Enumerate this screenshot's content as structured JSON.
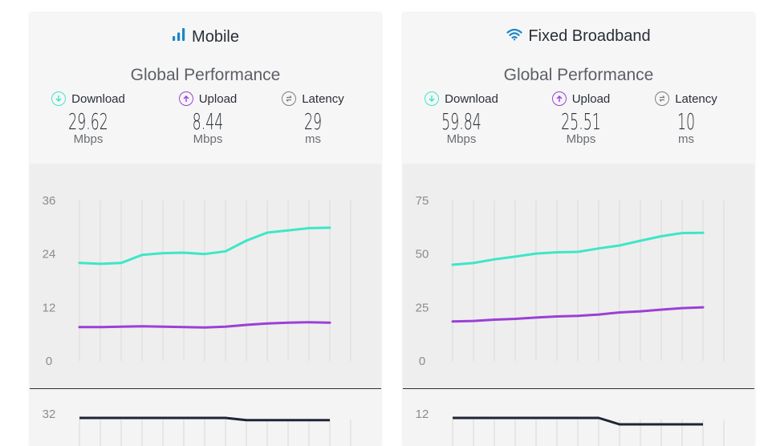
{
  "colors": {
    "download": "#3ee6c7",
    "upload": "#9b40d6",
    "latency": "#7a7c82",
    "latency_line": "#1f2535",
    "grid": "#d9d9d9",
    "mobile_icon": "#1a86c8",
    "wifi_icon": "#1a86c8"
  },
  "mobile": {
    "title": "Mobile",
    "icon": "signal-bars-icon",
    "perf_title": "Global Performance",
    "download": {
      "label": "Download",
      "value": "29.62",
      "unit": "Mbps"
    },
    "upload": {
      "label": "Upload",
      "value": "8.44",
      "unit": "Mbps"
    },
    "latency": {
      "label": "Latency",
      "value": "29",
      "unit": "ms"
    }
  },
  "broadband": {
    "title": "Fixed Broadband",
    "icon": "wifi-icon",
    "perf_title": "Global Performance",
    "download": {
      "label": "Download",
      "value": "59.84",
      "unit": "Mbps"
    },
    "upload": {
      "label": "Upload",
      "value": "25.51",
      "unit": "Mbps"
    },
    "latency": {
      "label": "Latency",
      "value": "10",
      "unit": "ms"
    }
  },
  "chart_data": [
    {
      "type": "line",
      "ylim": [
        0,
        36
      ],
      "yticks": [
        "36",
        "24",
        "12",
        "0"
      ],
      "series": [
        {
          "values": [
            22.0,
            21.8,
            22.0,
            23.8,
            24.2,
            24.3,
            24.0,
            24.6,
            27.0,
            28.8,
            29.3,
            29.8,
            29.9
          ]
        },
        {
          "values": [
            7.6,
            7.6,
            7.7,
            7.8,
            7.7,
            7.6,
            7.5,
            7.7,
            8.1,
            8.4,
            8.6,
            8.7,
            8.6
          ]
        }
      ]
    },
    {
      "type": "line",
      "ylim": [
        0,
        75
      ],
      "yticks": [
        "75",
        "50",
        "25",
        "0"
      ],
      "series": [
        {
          "values": [
            45.0,
            45.8,
            47.5,
            48.8,
            50.2,
            50.8,
            51.0,
            52.6,
            54.0,
            56.2,
            58.3,
            59.8,
            59.9
          ]
        },
        {
          "values": [
            18.5,
            18.7,
            19.3,
            19.7,
            20.3,
            20.8,
            21.1,
            21.7,
            22.7,
            23.2,
            24.0,
            24.7,
            25.1
          ]
        }
      ]
    },
    {
      "type": "line",
      "yticks": [
        "32"
      ],
      "series": [
        {
          "values": [
            32.0,
            32.0,
            32.0,
            32.0,
            32.0,
            32.0,
            32.0,
            32.0,
            31.3,
            31.3,
            31.3,
            31.3,
            31.3
          ]
        }
      ]
    },
    {
      "type": "line",
      "yticks": [
        "12"
      ],
      "series": [
        {
          "values": [
            12.0,
            12.0,
            12.0,
            12.0,
            12.0,
            12.0,
            12.0,
            12.0,
            11.0,
            11.0,
            11.0,
            11.0,
            11.0
          ]
        }
      ]
    }
  ]
}
